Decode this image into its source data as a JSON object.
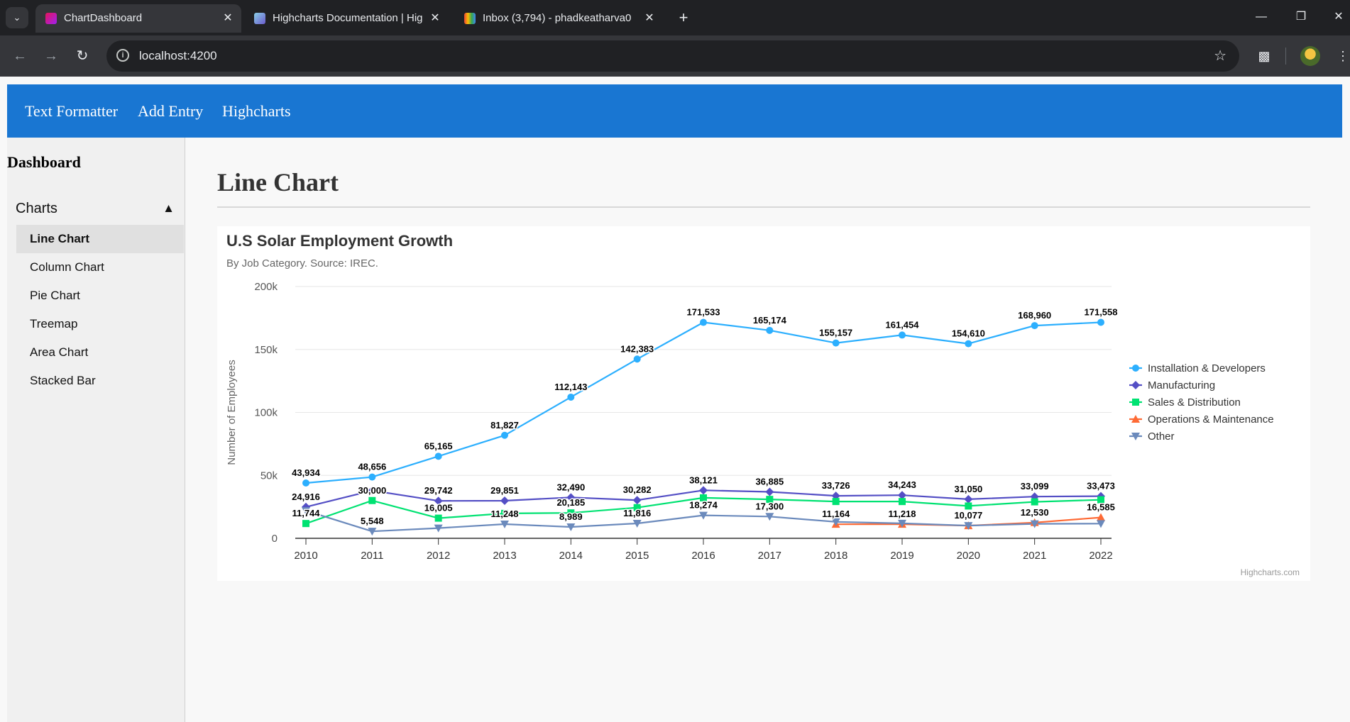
{
  "browser": {
    "tabs": [
      {
        "title": "ChartDashboard",
        "active": true,
        "favicon": "angular-icon"
      },
      {
        "title": "Highcharts Documentation | Hig",
        "active": false,
        "favicon": "highcharts-icon"
      },
      {
        "title": "Inbox (3,794) - phadkeatharva0",
        "active": false,
        "favicon": "gmail-icon"
      }
    ],
    "url": "localhost:4200"
  },
  "app": {
    "nav": [
      "Text Formatter",
      "Add Entry",
      "Highcharts"
    ]
  },
  "sidebar": {
    "title": "Dashboard",
    "section": "Charts",
    "items": [
      "Line Chart",
      "Column Chart",
      "Pie Chart",
      "Treemap",
      "Area Chart",
      "Stacked Bar"
    ],
    "active_index": 0
  },
  "main": {
    "page_title": "Line Chart"
  },
  "chart_data": {
    "type": "line",
    "title": "U.S Solar Employment Growth",
    "subtitle": "By Job Category. Source: IREC.",
    "ylabel": "Number of Employees",
    "xlabel": "",
    "ylim": [
      0,
      200000
    ],
    "yticks": [
      "0",
      "50k",
      "100k",
      "150k",
      "200k"
    ],
    "x": [
      2010,
      2011,
      2012,
      2013,
      2014,
      2015,
      2016,
      2017,
      2018,
      2019,
      2020,
      2021,
      2022
    ],
    "legend_position": "right",
    "credits": "Highcharts.com",
    "series": [
      {
        "name": "Installation & Developers",
        "color": "#2caffe",
        "marker": "circle",
        "values": [
          43934,
          48656,
          65165,
          81827,
          112143,
          142383,
          171533,
          165174,
          155157,
          161454,
          154610,
          168960,
          171558
        ]
      },
      {
        "name": "Manufacturing",
        "color": "#544fc5",
        "marker": "diamond",
        "values": [
          24916,
          37941,
          29742,
          29851,
          32490,
          30282,
          38121,
          36885,
          33726,
          34243,
          31050,
          33099,
          33473
        ]
      },
      {
        "name": "Sales & Distribution",
        "color": "#00e272",
        "marker": "square",
        "values": [
          11744,
          30000,
          16005,
          19771,
          20185,
          24377,
          32147,
          30912,
          29243,
          29213,
          25663,
          28978,
          30618
        ]
      },
      {
        "name": "Operations & Maintenance",
        "color": "#fe6a35",
        "marker": "triangle",
        "values": [
          null,
          null,
          null,
          null,
          null,
          null,
          null,
          null,
          11164,
          11218,
          10077,
          12530,
          16585
        ]
      },
      {
        "name": "Other",
        "color": "#6b8abc",
        "marker": "triangle-down",
        "values": [
          21908,
          5548,
          8105,
          11248,
          8989,
          11816,
          18274,
          17300,
          13053,
          11906,
          10073,
          11471,
          11648
        ]
      }
    ],
    "data_labels": [
      {
        "series": 0,
        "index": 0,
        "text": "43,934"
      },
      {
        "series": 0,
        "index": 1,
        "text": "48,656"
      },
      {
        "series": 0,
        "index": 2,
        "text": "65,165"
      },
      {
        "series": 0,
        "index": 3,
        "text": "81,827"
      },
      {
        "series": 0,
        "index": 4,
        "text": "112,143"
      },
      {
        "series": 0,
        "index": 5,
        "text": "142,383"
      },
      {
        "series": 0,
        "index": 6,
        "text": "171,533"
      },
      {
        "series": 0,
        "index": 7,
        "text": "165,174"
      },
      {
        "series": 0,
        "index": 8,
        "text": "155,157"
      },
      {
        "series": 0,
        "index": 9,
        "text": "161,454"
      },
      {
        "series": 0,
        "index": 10,
        "text": "154,610"
      },
      {
        "series": 0,
        "index": 11,
        "text": "168,960"
      },
      {
        "series": 0,
        "index": 12,
        "text": "171,558"
      },
      {
        "series": 1,
        "index": 0,
        "text": "24,916"
      },
      {
        "series": 1,
        "index": 2,
        "text": "29,742"
      },
      {
        "series": 1,
        "index": 3,
        "text": "29,851"
      },
      {
        "series": 1,
        "index": 4,
        "text": "32,490"
      },
      {
        "series": 1,
        "index": 5,
        "text": "30,282"
      },
      {
        "series": 1,
        "index": 6,
        "text": "38,121"
      },
      {
        "series": 1,
        "index": 7,
        "text": "36,885"
      },
      {
        "series": 1,
        "index": 8,
        "text": "33,726"
      },
      {
        "series": 1,
        "index": 9,
        "text": "34,243"
      },
      {
        "series": 1,
        "index": 10,
        "text": "31,050"
      },
      {
        "series": 1,
        "index": 11,
        "text": "33,099"
      },
      {
        "series": 1,
        "index": 12,
        "text": "33,473"
      },
      {
        "series": 2,
        "index": 0,
        "text": "11,744"
      },
      {
        "series": 2,
        "index": 1,
        "text": "30,000"
      },
      {
        "series": 2,
        "index": 2,
        "text": "16,005"
      },
      {
        "series": 2,
        "index": 4,
        "text": "20,185"
      },
      {
        "series": 3,
        "index": 8,
        "text": "11,164"
      },
      {
        "series": 3,
        "index": 9,
        "text": "11,218"
      },
      {
        "series": 3,
        "index": 10,
        "text": "10,077"
      },
      {
        "series": 3,
        "index": 11,
        "text": "12,530"
      },
      {
        "series": 3,
        "index": 12,
        "text": "16,585"
      },
      {
        "series": 4,
        "index": 1,
        "text": "5,548"
      },
      {
        "series": 4,
        "index": 3,
        "text": "11,248"
      },
      {
        "series": 4,
        "index": 4,
        "text": "8,989"
      },
      {
        "series": 4,
        "index": 5,
        "text": "11,816"
      },
      {
        "series": 4,
        "index": 6,
        "text": "18,274"
      },
      {
        "series": 4,
        "index": 7,
        "text": "17,300"
      }
    ]
  }
}
